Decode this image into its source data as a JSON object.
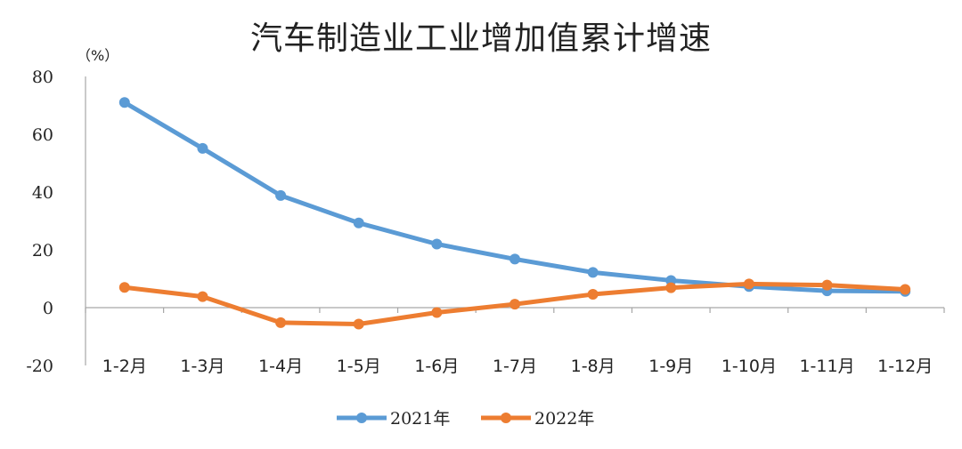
{
  "chart_data": {
    "type": "line",
    "title": "汽车制造业工业增加值累计增速",
    "unit": "（%）",
    "categories": [
      "1-2月",
      "1-3月",
      "1-4月",
      "1-5月",
      "1-6月",
      "1-7月",
      "1-8月",
      "1-9月",
      "1-10月",
      "1-11月",
      "1-12月"
    ],
    "series": [
      {
        "name": "2021年",
        "color": "#5B9BD5",
        "values": [
          71.0,
          55.1,
          38.8,
          29.3,
          22.0,
          16.8,
          12.2,
          9.4,
          7.3,
          5.8,
          5.6
        ]
      },
      {
        "name": "2022年",
        "color": "#ED7D31",
        "values": [
          7.0,
          3.8,
          -5.2,
          -5.7,
          -1.7,
          1.2,
          4.6,
          6.9,
          8.2,
          7.8,
          6.3
        ]
      }
    ],
    "yticks": [
      -20,
      0,
      20,
      40,
      60,
      80
    ],
    "ylim": [
      -20,
      80
    ],
    "negative_tick_color": "#FF0000",
    "grid": false,
    "legend_position": "bottom"
  }
}
